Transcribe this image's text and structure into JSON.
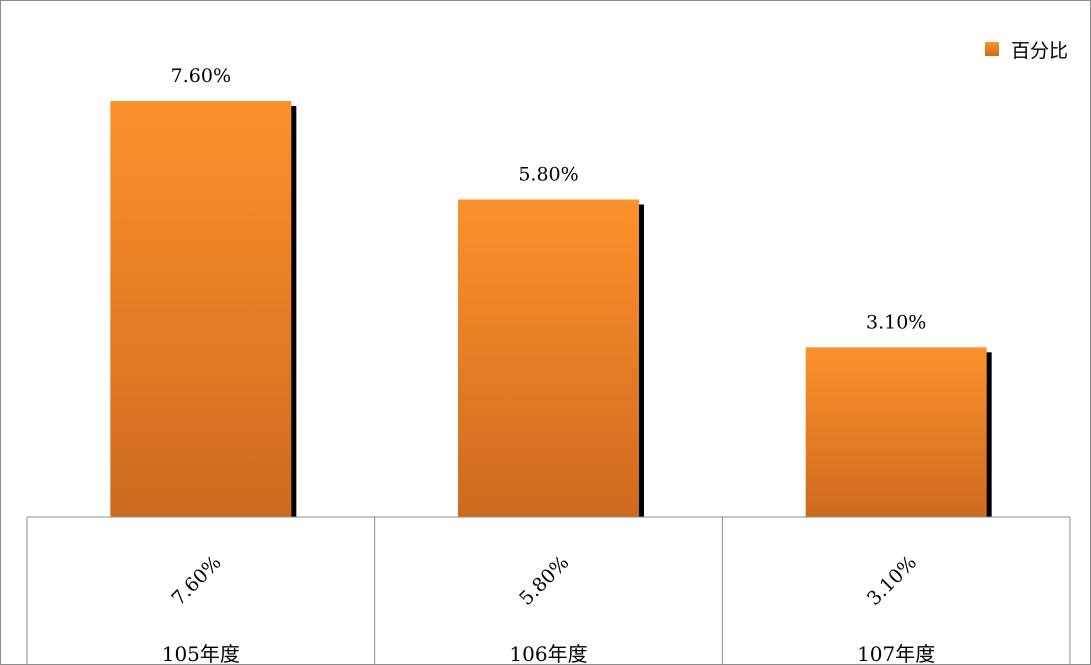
{
  "chart_data": {
    "type": "bar",
    "categories": [
      "105年度",
      "106年度",
      "107年度"
    ],
    "series": [
      {
        "name": "百分比",
        "values": [
          7.6,
          5.8,
          3.1
        ]
      }
    ],
    "data_labels": [
      "7.60%",
      "5.80%",
      "3.10%"
    ],
    "table_labels": [
      "7.60%",
      "5.80%",
      "3.10%"
    ],
    "ylim": [
      0,
      9.25
    ],
    "legend_position": "top-right",
    "grid": false,
    "bar_color_top": "#fc922c",
    "bar_color_bottom": "#cd6a1e",
    "shadow_color": "#000000"
  }
}
